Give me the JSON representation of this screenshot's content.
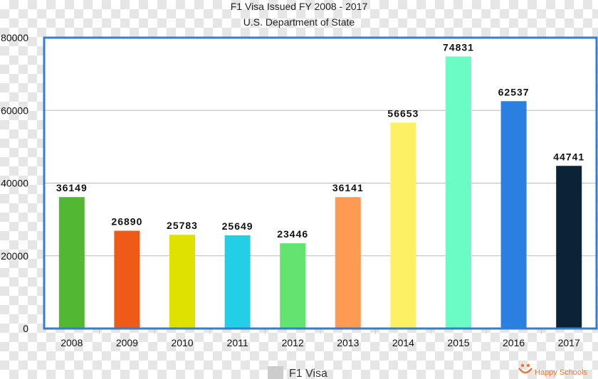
{
  "chart_data": {
    "type": "bar",
    "title": "F1 Visa Issued FY 2008 - 2017",
    "subtitle": "U.S. Department of State",
    "categories": [
      "2008",
      "2009",
      "2010",
      "2011",
      "2012",
      "2013",
      "2014",
      "2015",
      "2016",
      "2017"
    ],
    "series": [
      {
        "name": "F1 Visa",
        "values": [
          36149,
          26890,
          25783,
          25649,
          23446,
          36141,
          56653,
          74831,
          62537,
          44741
        ],
        "colors": [
          "#52b833",
          "#ef5a16",
          "#dfe200",
          "#22cfe6",
          "#63e36f",
          "#ff9a52",
          "#fdf065",
          "#6bfbc4",
          "#2b7fe0",
          "#0b2237"
        ]
      }
    ],
    "y_ticks": [
      "0",
      "20000",
      "40000",
      "60000",
      "80000"
    ],
    "ylim": [
      0,
      80000
    ],
    "grid": true,
    "legend_position": "bottom-center",
    "legend_swatch_color": "#cccccc",
    "plot_border_color": "#2f7fd4"
  },
  "watermark": {
    "text": "Happy Schools",
    "color": "#e8763a",
    "icon": "happy-schools-logo-icon"
  }
}
